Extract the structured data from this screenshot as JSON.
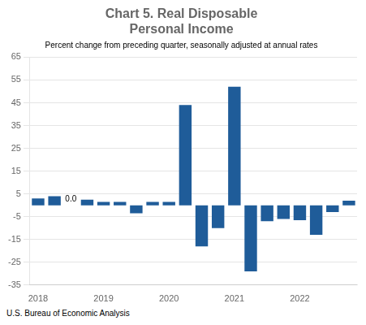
{
  "chart_data": {
    "type": "bar",
    "title": "Chart 5. Real Disposable\nPersonal Income",
    "subtitle": "Percent change from preceding quarter, seasonally adjusted at annual rates",
    "footer": "U.S. Bureau of Economic Analysis",
    "categories": [
      "2018",
      null,
      null,
      null,
      "2019",
      null,
      null,
      null,
      "2020",
      null,
      null,
      null,
      "2021",
      null,
      null,
      null,
      "2022",
      null,
      null,
      null
    ],
    "values": [
      3.0,
      4.0,
      0.0,
      2.5,
      1.5,
      1.5,
      -3.5,
      1.5,
      1.5,
      44.0,
      -18.0,
      -10.0,
      52.0,
      -29.0,
      -7.0,
      -6.0,
      -6.5,
      -13.0,
      -3.0,
      2.0
    ],
    "color": "#1F5C99",
    "ylim": [
      -35,
      65
    ],
    "yticks": [
      -35,
      -25,
      -15,
      -5,
      5,
      15,
      25,
      35,
      45,
      55,
      65
    ],
    "grid": true,
    "annotations": [
      {
        "text": "0.0",
        "index": 2
      }
    ]
  }
}
